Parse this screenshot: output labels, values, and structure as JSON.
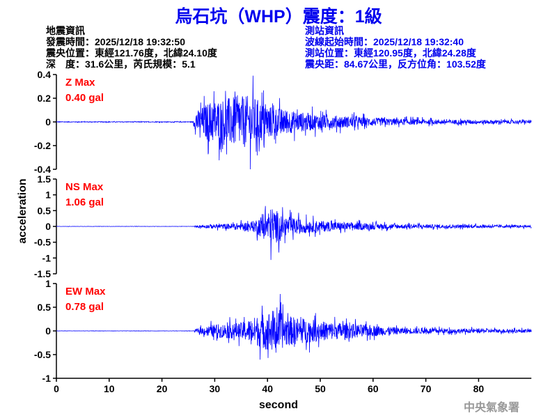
{
  "title": "烏石坑（WHP）震度：1級",
  "quake_info": {
    "heading": "地震資訊",
    "time": "發震時間：2025/12/18 19:32:50",
    "location": "震央位置：東經121.76度，北緯24.10度",
    "depth_mag": "深　度：31.6公里，芮氏規模：5.1"
  },
  "station_info": {
    "heading": "測站資訊",
    "start_time": "波線起始時間：2025/12/18 19:32:40",
    "location": "測站位置：東經120.95度，北緯24.28度",
    "distance": "震央距：84.67公里，反方位角：103.52度"
  },
  "watermark": "中央氣象署",
  "colors": {
    "trace": "#0000ff",
    "label": "#ff0000",
    "title": "#0000ee"
  },
  "chart_data": {
    "type": "line",
    "xlabel": "second",
    "ylabel": "acceleration",
    "xlim": [
      0,
      90
    ],
    "xticks": [
      "0",
      "10",
      "20",
      "30",
      "40",
      "50",
      "60",
      "70",
      "80"
    ],
    "panels": [
      {
        "component": "Z",
        "label": "Z Max",
        "max_label": "0.40 gal",
        "ylim": [
          -0.4,
          0.4
        ],
        "yticks": [
          "0.4",
          "0.2",
          "0",
          "-0.2",
          "-0.4"
        ],
        "peak": 0.4,
        "envelope": [
          [
            0,
            0.004
          ],
          [
            25.8,
            0.004
          ],
          [
            26.5,
            0.12
          ],
          [
            29,
            0.25
          ],
          [
            33,
            0.3
          ],
          [
            37,
            0.32
          ],
          [
            40,
            0.2
          ],
          [
            45,
            0.13
          ],
          [
            50,
            0.09
          ],
          [
            60,
            0.05
          ],
          [
            70,
            0.03
          ],
          [
            90,
            0.02
          ]
        ]
      },
      {
        "component": "NS",
        "label": "NS Max",
        "max_label": "1.06 gal",
        "ylim": [
          -1.5,
          1.5
        ],
        "yticks": [
          "1.5",
          "1",
          "0.5",
          "0",
          "-0.5",
          "-1",
          "-1.5"
        ],
        "peak": 1.06,
        "envelope": [
          [
            0,
            0.005
          ],
          [
            26,
            0.005
          ],
          [
            27,
            0.06
          ],
          [
            32,
            0.12
          ],
          [
            37,
            0.2
          ],
          [
            39.5,
            0.6
          ],
          [
            41,
            0.9
          ],
          [
            43,
            0.45
          ],
          [
            48,
            0.28
          ],
          [
            55,
            0.18
          ],
          [
            65,
            0.1
          ],
          [
            90,
            0.05
          ]
        ]
      },
      {
        "component": "EW",
        "label": "EW Max",
        "max_label": "0.78 gal",
        "ylim": [
          -1,
          1
        ],
        "yticks": [
          "1",
          "0.5",
          "0",
          "-0.5",
          "-1"
        ],
        "peak": 0.78,
        "envelope": [
          [
            0,
            0.004
          ],
          [
            26,
            0.004
          ],
          [
            27,
            0.08
          ],
          [
            30,
            0.2
          ],
          [
            35,
            0.25
          ],
          [
            38,
            0.45
          ],
          [
            41,
            0.65
          ],
          [
            44,
            0.45
          ],
          [
            50,
            0.3
          ],
          [
            56,
            0.22
          ],
          [
            65,
            0.1
          ],
          [
            75,
            0.07
          ],
          [
            90,
            0.05
          ]
        ]
      }
    ]
  }
}
